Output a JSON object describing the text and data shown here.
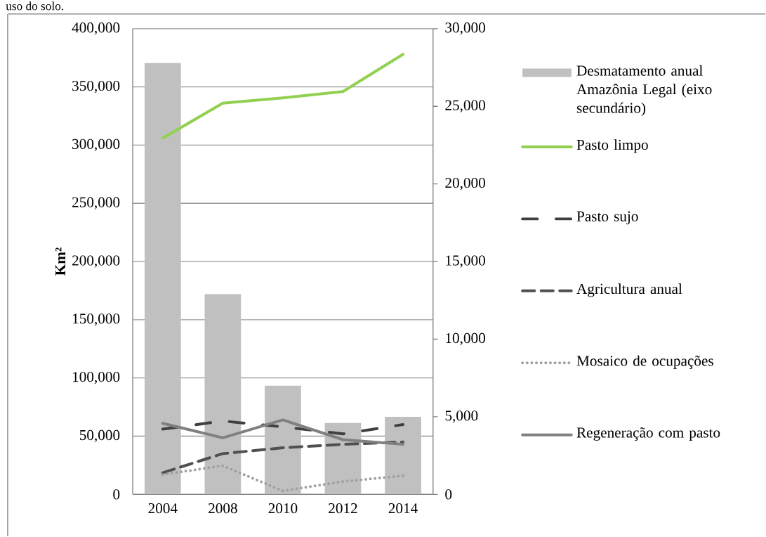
{
  "chart_data": {
    "type": "line",
    "ylabel": "Km²",
    "annotations": [
      "uso do solo."
    ],
    "categories": [
      "2004",
      "2008",
      "2010",
      "2012",
      "2014"
    ],
    "series": [
      {
        "name": "Desmatamento anual Amazônia Legal (eixo secundário)",
        "type": "bar",
        "axis": "y2",
        "color": "#c0c0c0",
        "values": [
          27800,
          12900,
          7000,
          4600,
          5000
        ]
      },
      {
        "name": "Pasto limpo",
        "color": "#92d050",
        "line_style": "solid",
        "values": [
          306000,
          336000,
          340500,
          346000,
          378000
        ]
      },
      {
        "name": "Pasto sujo",
        "color": "#404040",
        "line_style": "dashdot",
        "values": [
          56000,
          63000,
          58000,
          52000,
          60000
        ]
      },
      {
        "name": "Agricultura anual",
        "color": "#505050",
        "line_style": "dashed",
        "values": [
          18600,
          35000,
          40000,
          43000,
          45000
        ]
      },
      {
        "name": "Mosaico de ocupações",
        "color": "#a0a0a0",
        "line_style": "dotted",
        "values": [
          17000,
          24600,
          3000,
          11000,
          16000
        ]
      },
      {
        "name": "Regeneração com pasto",
        "color": "#808080",
        "line_style": "solid",
        "values": [
          61000,
          48600,
          64000,
          47000,
          43000
        ]
      }
    ],
    "ylim": [
      0,
      400000
    ],
    "yticks": [
      {
        "value": 0,
        "label": "0"
      },
      {
        "value": 50000,
        "label": "50,000"
      },
      {
        "value": 100000,
        "label": "100,000"
      },
      {
        "value": 150000,
        "label": "150,000"
      },
      {
        "value": 200000,
        "label": "200,000"
      },
      {
        "value": 250000,
        "label": "250,000"
      },
      {
        "value": 300000,
        "label": "300,000"
      },
      {
        "value": 350000,
        "label": "350,000"
      },
      {
        "value": 400000,
        "label": "400,000"
      }
    ],
    "y2lim": [
      0,
      30000
    ],
    "y2ticks": [
      {
        "value": 0,
        "label": "0"
      },
      {
        "value": 5000,
        "label": "5,000"
      },
      {
        "value": 10000,
        "label": "10,000"
      },
      {
        "value": 15000,
        "label": "15,000"
      },
      {
        "value": 20000,
        "label": "20,000"
      },
      {
        "value": 25000,
        "label": "25,000"
      },
      {
        "value": 30000,
        "label": "30,000"
      }
    ],
    "grid": "y",
    "legend": "right"
  }
}
